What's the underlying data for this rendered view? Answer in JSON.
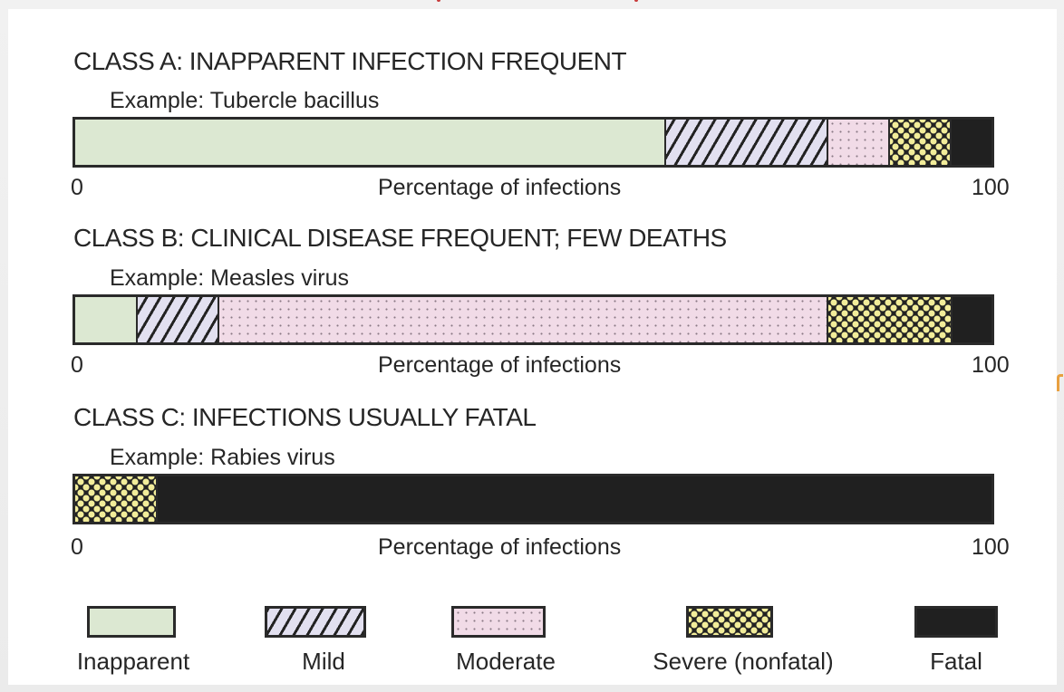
{
  "chart_data": {
    "type": "bar",
    "orientation": "horizontal-stacked",
    "xlabel": "Percentage of infections",
    "xlim": [
      0,
      100
    ],
    "x_ticks": [
      "0",
      "100"
    ],
    "categories": [
      "Inapparent",
      "Mild",
      "Moderate",
      "Severe (nonfatal)",
      "Fatal"
    ],
    "series": [
      {
        "name": "CLASS A: INAPPARENT INFECTION FREQUENT",
        "example": "Example: Tubercle bacillus",
        "values": [
          64.5,
          17.7,
          6.7,
          6.7,
          4.4
        ]
      },
      {
        "name": "CLASS B: CLINICAL DISEASE FREQUENT; FEW DEATHS",
        "example": "Example: Measles virus",
        "values": [
          6.8,
          8.9,
          66.5,
          13.5,
          4.3
        ]
      },
      {
        "name": "CLASS C: INFECTIONS USUALLY FATAL",
        "example": "Example: Rabies virus",
        "values": [
          0,
          0,
          0,
          9.0,
          91.0
        ]
      }
    ],
    "legend": {
      "position": "bottom",
      "entries": [
        {
          "label": "Inapparent",
          "color": "#dce8d2",
          "pattern": "solid"
        },
        {
          "label": "Mild",
          "color": "#e2e0f0",
          "pattern": "diagonal-hatch"
        },
        {
          "label": "Moderate",
          "color": "#f1dbe7",
          "pattern": "dots"
        },
        {
          "label": "Severe (nonfatal)",
          "color": "#f2ed9a",
          "pattern": "crosshatch"
        },
        {
          "label": "Fatal",
          "color": "#202020",
          "pattern": "solid"
        }
      ]
    },
    "grid": false
  },
  "axis": {
    "zero": "0",
    "hundred": "100",
    "label": "Percentage of infections"
  }
}
